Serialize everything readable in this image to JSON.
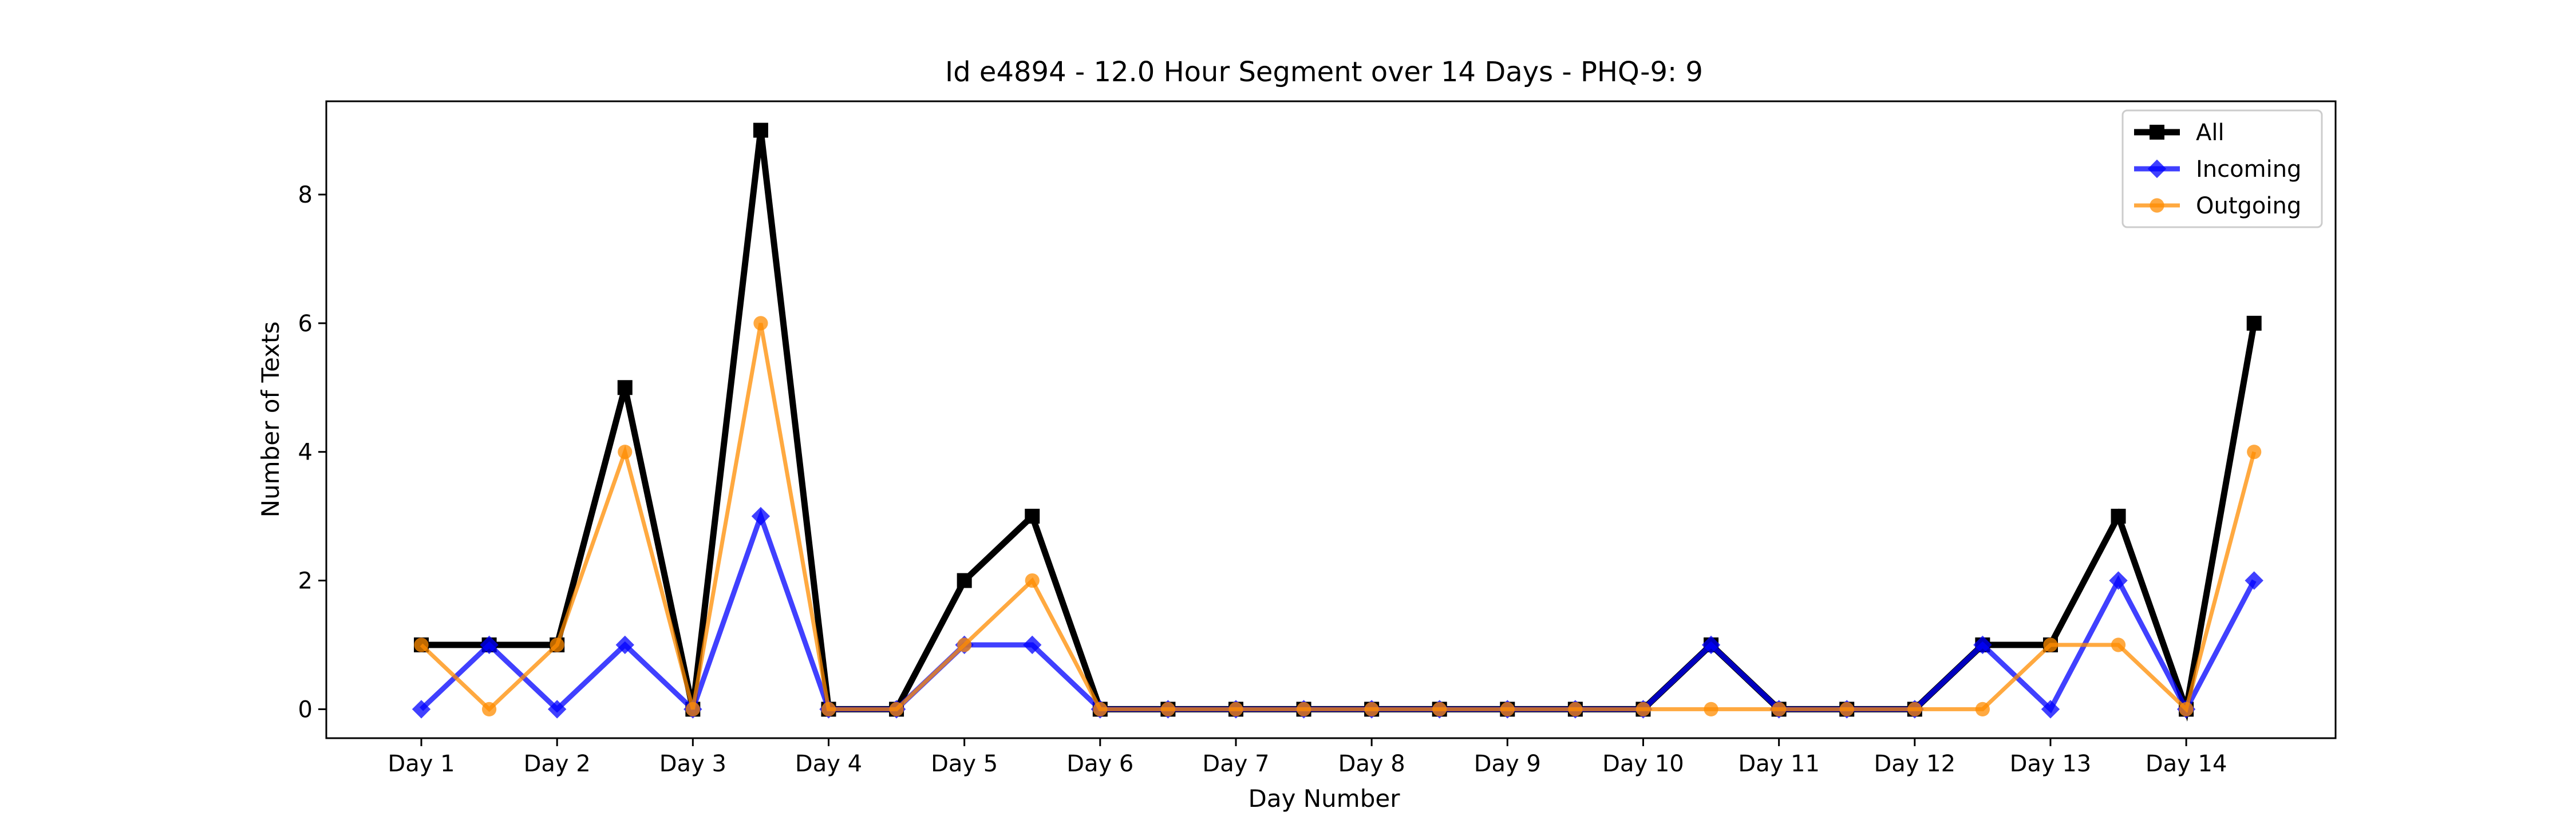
{
  "chart_data": {
    "type": "line",
    "title": "Id e4894 - 12.0 Hour Segment over 14 Days - PHQ-9: 9",
    "xlabel": "Day Number",
    "ylabel": "Number of Texts",
    "xlim": [
      0.3,
      15.1
    ],
    "ylim": [
      -0.45,
      9.45
    ],
    "x_tick_positions": [
      1,
      2,
      3,
      4,
      5,
      6,
      7,
      8,
      9,
      10,
      11,
      12,
      13,
      14
    ],
    "x_tick_labels": [
      "Day 1",
      "Day 2",
      "Day 3",
      "Day 4",
      "Day 5",
      "Day 6",
      "Day 7",
      "Day 8",
      "Day 9",
      "Day 10",
      "Day 11",
      "Day 12",
      "Day 13",
      "Day 14"
    ],
    "y_ticks": [
      0,
      2,
      4,
      6,
      8
    ],
    "x": [
      1,
      1.5,
      2,
      2.5,
      3,
      3.5,
      4,
      4.5,
      5,
      5.5,
      6,
      6.5,
      7,
      7.5,
      8,
      8.5,
      9,
      9.5,
      10,
      10.5,
      11,
      11.5,
      12,
      12.5,
      13,
      13.5,
      14,
      14.5
    ],
    "series": [
      {
        "name": "All",
        "color": "#000000",
        "marker": "square",
        "values": [
          1,
          1,
          1,
          5,
          0,
          9,
          0,
          0,
          2,
          3,
          0,
          0,
          0,
          0,
          0,
          0,
          0,
          0,
          0,
          1,
          0,
          0,
          0,
          1,
          1,
          3,
          0,
          6
        ]
      },
      {
        "name": "Incoming",
        "color": "#0000ff",
        "marker": "diamond",
        "values": [
          0,
          1,
          0,
          1,
          0,
          3,
          0,
          0,
          1,
          1,
          0,
          0,
          0,
          0,
          0,
          0,
          0,
          0,
          0,
          1,
          0,
          0,
          0,
          1,
          0,
          2,
          0,
          2
        ]
      },
      {
        "name": "Outgoing",
        "color": "#ff8c00",
        "marker": "circle",
        "values": [
          1,
          0,
          1,
          4,
          0,
          6,
          0,
          0,
          1,
          2,
          0,
          0,
          0,
          0,
          0,
          0,
          0,
          0,
          0,
          0,
          0,
          0,
          0,
          0,
          1,
          1,
          0,
          4
        ]
      }
    ],
    "legend": {
      "position": "top-right"
    },
    "grid": false
  }
}
